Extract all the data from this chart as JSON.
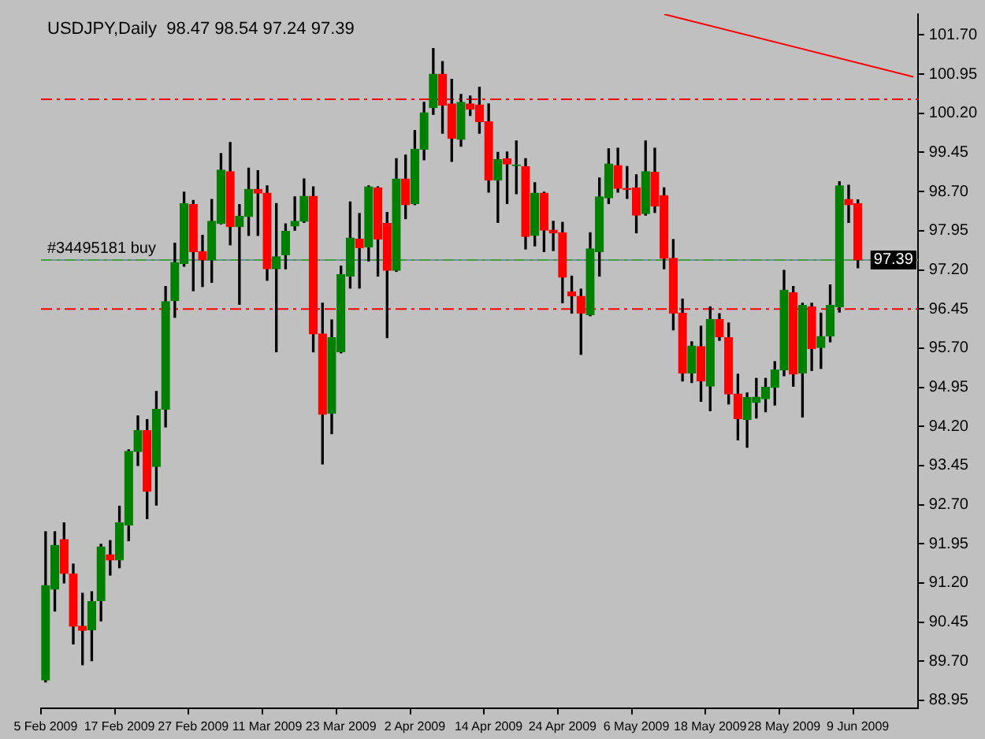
{
  "chart_data": {
    "type": "candlestick",
    "title": "USDJPY,Daily  98.47 98.54 97.24 97.39",
    "categories": [
      "5 Feb 2009",
      null,
      null,
      null,
      null,
      null,
      null,
      null,
      "17 Feb 2009",
      null,
      null,
      null,
      null,
      null,
      null,
      null,
      "27 Feb 2009",
      null,
      null,
      null,
      null,
      null,
      null,
      null,
      "11 Mar 2009",
      null,
      null,
      null,
      null,
      null,
      null,
      null,
      "23 Mar 2009",
      null,
      null,
      null,
      null,
      null,
      null,
      null,
      "2 Apr 2009",
      null,
      null,
      null,
      null,
      null,
      null,
      null,
      "14 Apr 2009",
      null,
      null,
      null,
      null,
      null,
      null,
      null,
      "24 Apr 2009",
      null,
      null,
      null,
      null,
      null,
      null,
      null,
      "6 May 2009",
      null,
      null,
      null,
      null,
      null,
      null,
      null,
      "18 May 2009",
      null,
      null,
      null,
      null,
      null,
      null,
      null,
      "28 May 2009",
      null,
      null,
      null,
      null,
      null,
      null,
      null,
      "9 Jun 2009",
      null,
      null,
      null,
      null,
      null,
      null
    ],
    "ohlc": [
      [
        89.34,
        92.18,
        89.3,
        91.15
      ],
      [
        91.08,
        92.18,
        90.66,
        91.92
      ],
      [
        92.03,
        92.35,
        91.2,
        91.38
      ],
      [
        91.37,
        91.56,
        90.03,
        90.37
      ],
      [
        90.37,
        91.0,
        89.63,
        90.29
      ],
      [
        90.3,
        91.03,
        89.71,
        90.84
      ],
      [
        90.86,
        91.94,
        90.47,
        91.89
      ],
      [
        91.74,
        92.01,
        91.35,
        91.64
      ],
      [
        91.64,
        92.67,
        91.49,
        92.35
      ],
      [
        92.31,
        93.75,
        92.01,
        93.72
      ],
      [
        93.72,
        94.4,
        93.45,
        94.12
      ],
      [
        94.12,
        94.33,
        92.43,
        92.96
      ],
      [
        93.43,
        94.87,
        92.69,
        94.53
      ],
      [
        94.53,
        96.88,
        94.19,
        96.59
      ],
      [
        96.61,
        97.71,
        96.29,
        97.34
      ],
      [
        97.32,
        98.69,
        97.27,
        98.47
      ],
      [
        98.45,
        98.53,
        96.8,
        97.55
      ],
      [
        97.55,
        97.86,
        96.88,
        97.39
      ],
      [
        97.39,
        98.55,
        96.96,
        98.13
      ],
      [
        98.09,
        99.43,
        98.08,
        99.11
      ],
      [
        99.08,
        99.64,
        97.68,
        98.03
      ],
      [
        98.03,
        98.45,
        96.54,
        98.23
      ],
      [
        98.22,
        99.15,
        97.86,
        98.74
      ],
      [
        98.74,
        99.1,
        97.86,
        98.67
      ],
      [
        98.67,
        98.81,
        97.0,
        97.22
      ],
      [
        97.22,
        98.47,
        95.63,
        97.45
      ],
      [
        97.49,
        98.08,
        97.22,
        97.94
      ],
      [
        98.04,
        98.6,
        97.96,
        98.13
      ],
      [
        98.13,
        98.94,
        98.11,
        98.61
      ],
      [
        98.61,
        98.79,
        95.63,
        95.97
      ],
      [
        95.97,
        96.56,
        93.48,
        94.43
      ],
      [
        94.45,
        96.24,
        94.06,
        95.9
      ],
      [
        95.63,
        97.27,
        95.61,
        97.11
      ],
      [
        97.08,
        98.5,
        96.85,
        97.81
      ],
      [
        97.79,
        98.28,
        96.85,
        97.62
      ],
      [
        97.64,
        98.81,
        97.37,
        98.79
      ],
      [
        98.77,
        98.79,
        97.08,
        97.79
      ],
      [
        98.09,
        98.3,
        95.9,
        97.19
      ],
      [
        97.19,
        99.33,
        97.17,
        98.94
      ],
      [
        98.94,
        99.4,
        98.18,
        98.45
      ],
      [
        98.47,
        99.87,
        98.45,
        99.51
      ],
      [
        99.51,
        100.41,
        99.31,
        100.21
      ],
      [
        100.31,
        101.44,
        100.18,
        100.95
      ],
      [
        100.95,
        101.19,
        99.82,
        100.36
      ],
      [
        100.38,
        100.85,
        99.28,
        99.72
      ],
      [
        99.7,
        100.56,
        99.57,
        100.41
      ],
      [
        100.38,
        100.53,
        100.16,
        100.28
      ],
      [
        100.36,
        100.7,
        99.82,
        100.04
      ],
      [
        100.04,
        100.38,
        98.69,
        98.92
      ],
      [
        98.92,
        99.45,
        98.11,
        99.31
      ],
      [
        99.33,
        99.46,
        98.47,
        99.23
      ],
      [
        99.2,
        99.67,
        98.66,
        99.21
      ],
      [
        99.18,
        99.33,
        97.6,
        97.84
      ],
      [
        97.86,
        98.87,
        97.66,
        98.67
      ],
      [
        98.67,
        98.69,
        97.55,
        97.96
      ],
      [
        97.96,
        98.13,
        97.57,
        97.91
      ],
      [
        97.91,
        98.11,
        96.57,
        97.06
      ],
      [
        96.78,
        97.08,
        96.37,
        96.7
      ],
      [
        96.69,
        96.83,
        95.58,
        96.37
      ],
      [
        96.34,
        97.91,
        96.32,
        97.6
      ],
      [
        97.55,
        98.96,
        97.08,
        98.6
      ],
      [
        98.58,
        99.52,
        98.47,
        99.23
      ],
      [
        99.2,
        99.53,
        98.69,
        98.76
      ],
      [
        98.76,
        99.18,
        98.57,
        98.74
      ],
      [
        98.77,
        99.02,
        97.91,
        98.25
      ],
      [
        98.28,
        99.67,
        98.25,
        99.08
      ],
      [
        99.07,
        99.53,
        98.3,
        98.42
      ],
      [
        98.62,
        98.77,
        97.22,
        97.42
      ],
      [
        97.42,
        97.78,
        96.05,
        96.37
      ],
      [
        96.37,
        96.64,
        95.07,
        95.22
      ],
      [
        95.22,
        95.82,
        95.04,
        95.74
      ],
      [
        95.73,
        96.12,
        94.68,
        95.07
      ],
      [
        94.97,
        96.49,
        94.5,
        96.25
      ],
      [
        96.25,
        96.36,
        95.85,
        95.92
      ],
      [
        95.9,
        96.18,
        94.63,
        94.82
      ],
      [
        94.82,
        95.2,
        93.94,
        94.35
      ],
      [
        94.33,
        94.84,
        93.8,
        94.75
      ],
      [
        94.66,
        95.12,
        94.36,
        94.76
      ],
      [
        94.73,
        95.12,
        94.48,
        94.95
      ],
      [
        94.95,
        95.44,
        94.61,
        95.28
      ],
      [
        95.28,
        97.19,
        95.17,
        96.81
      ],
      [
        96.76,
        96.88,
        94.97,
        95.2
      ],
      [
        95.22,
        96.56,
        94.38,
        96.52
      ],
      [
        96.49,
        96.56,
        95.27,
        95.69
      ],
      [
        95.71,
        96.37,
        95.31,
        95.92
      ],
      [
        95.93,
        96.91,
        95.82,
        96.52
      ],
      [
        96.49,
        98.89,
        96.39,
        98.81
      ],
      [
        98.55,
        98.82,
        98.11,
        98.45
      ],
      [
        98.47,
        98.54,
        97.24,
        97.39
      ],
      null,
      null,
      null,
      null,
      null,
      null
    ],
    "colors": [
      "#008000",
      "#008000",
      "#ff0000",
      "#ff0000",
      "#ff0000",
      "#008000",
      "#008000",
      "#ff0000",
      "#008000",
      "#008000",
      "#008000",
      "#ff0000",
      "#008000",
      "#008000",
      "#008000",
      "#008000",
      "#ff0000",
      "#ff0000",
      "#008000",
      "#008000",
      "#ff0000",
      "#008000",
      "#008000",
      "#ff0000",
      "#ff0000",
      "#008000",
      "#008000",
      "#008000",
      "#008000",
      "#ff0000",
      "#ff0000",
      "#008000",
      "#008000",
      "#008000",
      "#ff0000",
      "#008000",
      "#ff0000",
      "#ff0000",
      "#008000",
      "#ff0000",
      "#008000",
      "#008000",
      "#008000",
      "#ff0000",
      "#ff0000",
      "#008000",
      "#ff0000",
      "#ff0000",
      "#ff0000",
      "#008000",
      "#ff0000",
      "#008000",
      "#ff0000",
      "#008000",
      "#ff0000",
      "#ff0000",
      "#ff0000",
      "#ff0000",
      "#ff0000",
      "#008000",
      "#008000",
      "#008000",
      "#ff0000",
      "#ff0000",
      "#ff0000",
      "#008000",
      "#ff0000",
      "#ff0000",
      "#ff0000",
      "#ff0000",
      "#008000",
      "#ff0000",
      "#008000",
      "#ff0000",
      "#ff0000",
      "#ff0000",
      "#008000",
      "#008000",
      "#008000",
      "#008000",
      "#008000",
      "#ff0000",
      "#008000",
      "#ff0000",
      "#008000",
      "#008000",
      "#008000",
      "#ff0000",
      "#ff0000",
      null,
      null,
      null,
      null,
      null,
      null
    ],
    "series": [
      {
        "type": "line",
        "color": "#ff0000",
        "values": [
          null,
          null,
          null,
          null,
          null,
          null,
          null,
          null,
          null,
          null,
          null,
          null,
          null,
          null,
          null,
          null,
          null,
          null,
          null,
          null,
          null,
          null,
          null,
          null,
          null,
          null,
          null,
          null,
          null,
          null,
          null,
          null,
          null,
          null,
          null,
          null,
          null,
          null,
          null,
          null,
          null,
          null,
          null,
          null,
          null,
          null,
          null,
          null,
          null,
          null,
          null,
          null,
          null,
          null,
          null,
          null,
          null,
          null,
          null,
          null,
          null,
          null,
          null,
          null,
          null,
          null,
          null,
          102.1,
          null,
          null,
          null,
          null,
          null,
          null,
          null,
          null,
          null,
          null,
          null,
          null,
          null,
          null,
          null,
          null,
          null,
          null,
          null,
          null,
          null,
          null,
          null,
          null,
          null,
          null,
          100.9
        ]
      }
    ],
    "ylim": [
      88.8,
      102.1
    ],
    "yticks": [
      {
        "value": 101.7,
        "label": "101.70"
      },
      {
        "value": 100.95,
        "label": "100.95"
      },
      {
        "value": 100.2,
        "label": "100.20"
      },
      {
        "value": 99.45,
        "label": "99.45"
      },
      {
        "value": 98.7,
        "label": "98.70"
      },
      {
        "value": 97.95,
        "label": "97.95"
      },
      {
        "value": 97.2,
        "label": "97.20"
      },
      {
        "value": 96.45,
        "label": "96.45"
      },
      {
        "value": 95.7,
        "label": "95.70"
      },
      {
        "value": 94.95,
        "label": "94.95"
      },
      {
        "value": 94.2,
        "label": "94.20"
      },
      {
        "value": 93.45,
        "label": "93.45"
      },
      {
        "value": 92.7,
        "label": "92.70"
      },
      {
        "value": 91.95,
        "label": "91.95"
      },
      {
        "value": 91.2,
        "label": "91.20"
      },
      {
        "value": 90.45,
        "label": "90.45"
      },
      {
        "value": 89.7,
        "label": "89.70"
      },
      {
        "value": 88.95,
        "label": "88.95"
      }
    ],
    "ref_lines": [
      {
        "axis": "y",
        "value": 100.47,
        "color": "#ff0000",
        "line_style": "dashed"
      },
      {
        "axis": "y",
        "value": 96.45,
        "color": "#ff0000",
        "line_style": "dashed"
      },
      {
        "axis": "y",
        "value": 97.39,
        "label": "97.39",
        "color": "#7090a0",
        "line_style": "solid"
      },
      {
        "axis": "y",
        "value": 97.39,
        "label": "#34495181 buy",
        "color": "#40a040",
        "line_style": "dashed"
      }
    ],
    "grid": false,
    "legend": false
  }
}
